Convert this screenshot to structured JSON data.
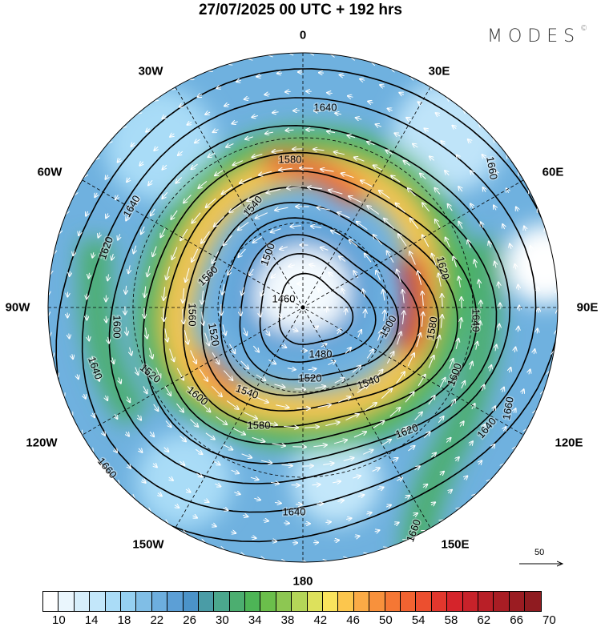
{
  "title": "27/07/2025  00 UTC  + 192 hrs",
  "logo": {
    "text": "MODES",
    "mark": "©"
  },
  "longitude_labels": [
    "0",
    "30E",
    "60E",
    "90E",
    "120E",
    "150E",
    "180",
    "150W",
    "120W",
    "90W",
    "60W",
    "30W"
  ],
  "contour_labels": [
    "1640",
    "1660",
    "1580",
    "1640",
    "1540",
    "1620",
    "1500",
    "1560",
    "1620",
    "1460",
    "1600",
    "1560",
    "1520",
    "1500",
    "1580",
    "1640",
    "1480",
    "1640",
    "1520",
    "1520",
    "1540",
    "1600",
    "1540",
    "1600",
    "1660",
    "1580",
    "1640",
    "1620",
    "1660",
    "1640",
    "1660"
  ],
  "wind_scale": {
    "label": "50"
  },
  "colorbar": {
    "labels": [
      "10",
      "14",
      "18",
      "22",
      "26",
      "30",
      "34",
      "38",
      "42",
      "46",
      "50",
      "54",
      "58",
      "62",
      "66",
      "70"
    ],
    "colors": [
      "#ffffff",
      "#eaf6fd",
      "#d6eefb",
      "#c3e7fa",
      "#aadcf7",
      "#95d0f1",
      "#80bee6",
      "#6daede",
      "#5c9fd6",
      "#4b93c9",
      "#4a9ca6",
      "#4ba78d",
      "#4cae70",
      "#4db556",
      "#6bbf4b",
      "#8dc752",
      "#b4d658",
      "#dde15c",
      "#fae45d",
      "#fcc64d",
      "#fbab46",
      "#f8913c",
      "#f57734",
      "#f26331",
      "#ec4f2f",
      "#e2372d",
      "#d5242b",
      "#c8222a",
      "#b91f27",
      "#a91d24",
      "#9b1c22",
      "#8f1b20"
    ]
  }
}
